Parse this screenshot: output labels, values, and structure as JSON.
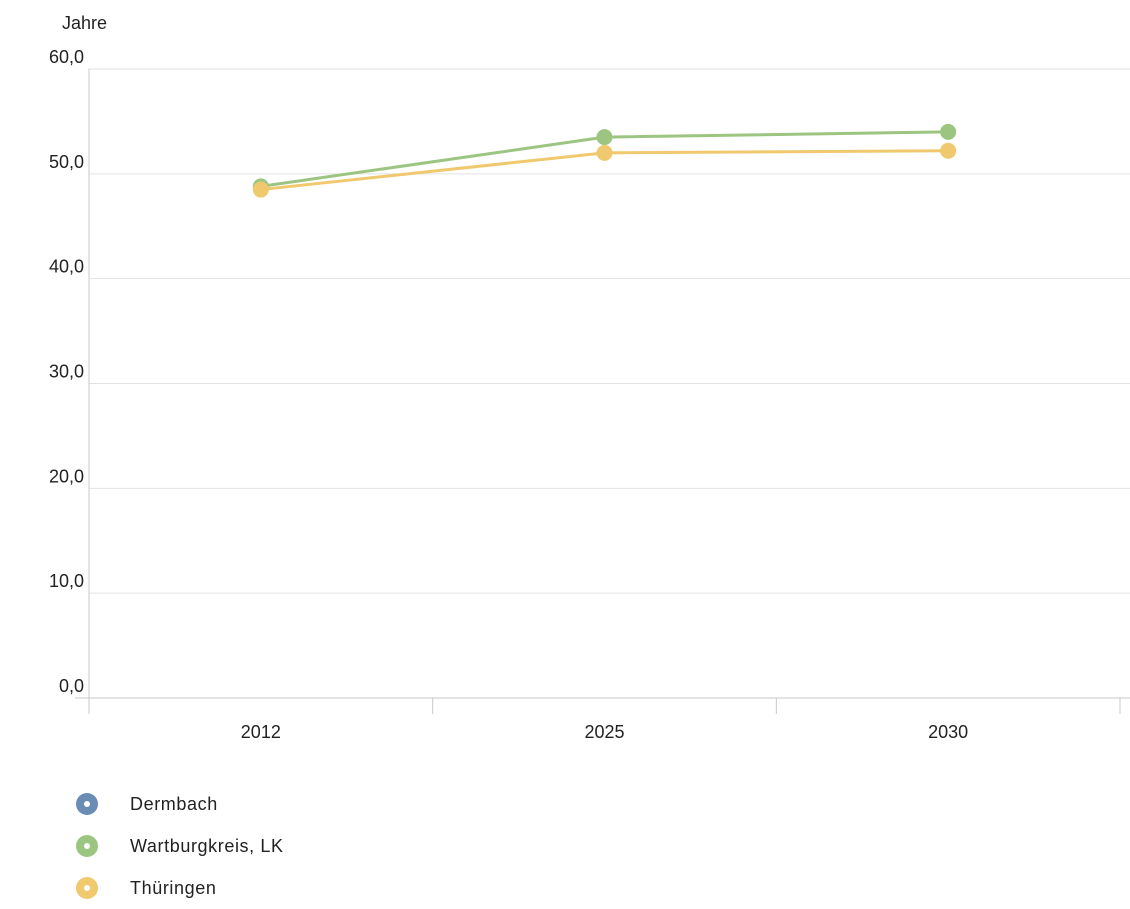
{
  "chart_data": {
    "type": "line",
    "unit_label": "Jahre",
    "categories": [
      "2012",
      "2025",
      "2030"
    ],
    "ylim": [
      0,
      60
    ],
    "yticks": [
      0,
      10,
      20,
      30,
      40,
      50,
      60
    ],
    "ytick_labels": [
      "0,0",
      "10,0",
      "20,0",
      "30,0",
      "40,0",
      "50,0",
      "60,0"
    ],
    "grid": true,
    "legend_position": "bottom-left",
    "series": [
      {
        "name": "Dermbach",
        "color": "#6b8cb5",
        "values": [
          null,
          null,
          null
        ]
      },
      {
        "name": "Wartburgkreis, LK",
        "color": "#9cc581",
        "values": [
          48.8,
          53.5,
          54.0
        ]
      },
      {
        "name": "Thüringen",
        "color": "#f0c96e",
        "values": [
          48.5,
          52.0,
          52.2
        ]
      }
    ]
  }
}
